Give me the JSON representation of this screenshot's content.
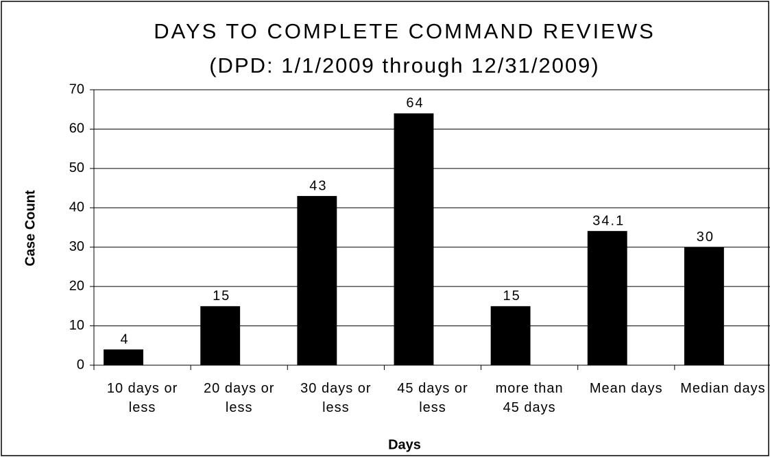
{
  "chart_data": {
    "type": "bar",
    "title": "DAYS TO COMPLETE COMMAND REVIEWS",
    "subtitle": "(DPD: 1/1/2009 through 12/31/2009)",
    "x_label": "Days",
    "y_label": "Case Count",
    "categories": [
      "10 days or less",
      "20 days or less",
      "30 days or less",
      "45 days or less",
      "more than 45 days",
      "Mean days",
      "Median days"
    ],
    "values": [
      4,
      15,
      43,
      64,
      15,
      34.1,
      30
    ],
    "color": "#000000",
    "ylim": [
      0,
      70
    ],
    "yticks": [
      0,
      10,
      20,
      30,
      40,
      50,
      60,
      70
    ],
    "grid": true
  }
}
